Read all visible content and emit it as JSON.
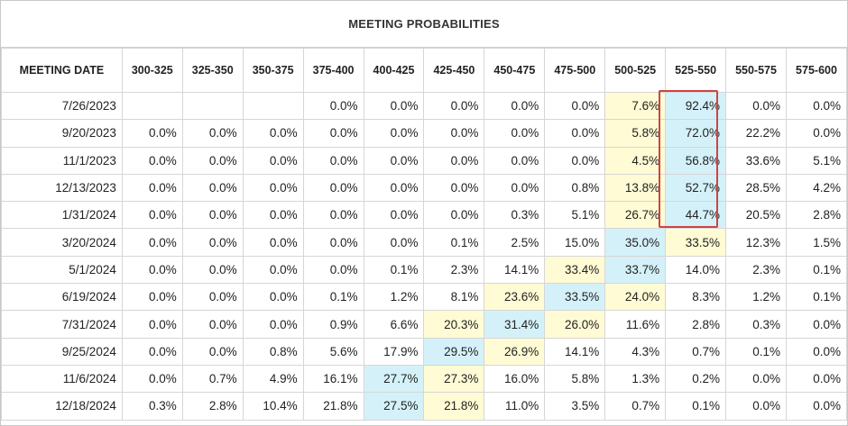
{
  "chart_data": {
    "type": "table",
    "title": "MEETING PROBABILITIES",
    "columns": [
      "MEETING DATE",
      "300-325",
      "325-350",
      "350-375",
      "375-400",
      "400-425",
      "425-450",
      "450-475",
      "475-500",
      "500-525",
      "525-550",
      "550-575",
      "575-600"
    ],
    "rows": [
      {
        "date": "7/26/2023",
        "values": [
          "",
          "",
          "",
          "0.0%",
          "0.0%",
          "0.0%",
          "0.0%",
          "0.0%",
          "7.6%",
          "92.4%",
          "0.0%",
          "0.0%"
        ]
      },
      {
        "date": "9/20/2023",
        "values": [
          "0.0%",
          "0.0%",
          "0.0%",
          "0.0%",
          "0.0%",
          "0.0%",
          "0.0%",
          "0.0%",
          "5.8%",
          "72.0%",
          "22.2%",
          "0.0%"
        ]
      },
      {
        "date": "11/1/2023",
        "values": [
          "0.0%",
          "0.0%",
          "0.0%",
          "0.0%",
          "0.0%",
          "0.0%",
          "0.0%",
          "0.0%",
          "4.5%",
          "56.8%",
          "33.6%",
          "5.1%"
        ]
      },
      {
        "date": "12/13/2023",
        "values": [
          "0.0%",
          "0.0%",
          "0.0%",
          "0.0%",
          "0.0%",
          "0.0%",
          "0.0%",
          "0.8%",
          "13.8%",
          "52.7%",
          "28.5%",
          "4.2%"
        ]
      },
      {
        "date": "1/31/2024",
        "values": [
          "0.0%",
          "0.0%",
          "0.0%",
          "0.0%",
          "0.0%",
          "0.0%",
          "0.3%",
          "5.1%",
          "26.7%",
          "44.7%",
          "20.5%",
          "2.8%"
        ]
      },
      {
        "date": "3/20/2024",
        "values": [
          "0.0%",
          "0.0%",
          "0.0%",
          "0.0%",
          "0.0%",
          "0.1%",
          "2.5%",
          "15.0%",
          "35.0%",
          "33.5%",
          "12.3%",
          "1.5%"
        ]
      },
      {
        "date": "5/1/2024",
        "values": [
          "0.0%",
          "0.0%",
          "0.0%",
          "0.0%",
          "0.1%",
          "2.3%",
          "14.1%",
          "33.4%",
          "33.7%",
          "14.0%",
          "2.3%",
          "0.1%"
        ]
      },
      {
        "date": "6/19/2024",
        "values": [
          "0.0%",
          "0.0%",
          "0.0%",
          "0.1%",
          "1.2%",
          "8.1%",
          "23.6%",
          "33.5%",
          "24.0%",
          "8.3%",
          "1.2%",
          "0.1%"
        ]
      },
      {
        "date": "7/31/2024",
        "values": [
          "0.0%",
          "0.0%",
          "0.0%",
          "0.9%",
          "6.6%",
          "20.3%",
          "31.4%",
          "26.0%",
          "11.6%",
          "2.8%",
          "0.3%",
          "0.0%"
        ]
      },
      {
        "date": "9/25/2024",
        "values": [
          "0.0%",
          "0.0%",
          "0.8%",
          "5.6%",
          "17.9%",
          "29.5%",
          "26.9%",
          "14.1%",
          "4.3%",
          "0.7%",
          "0.1%",
          "0.0%"
        ]
      },
      {
        "date": "11/6/2024",
        "values": [
          "0.0%",
          "0.7%",
          "4.9%",
          "16.1%",
          "27.7%",
          "27.3%",
          "16.0%",
          "5.8%",
          "1.3%",
          "0.2%",
          "0.0%",
          "0.0%"
        ]
      },
      {
        "date": "12/18/2024",
        "values": [
          "0.3%",
          "2.8%",
          "10.4%",
          "21.8%",
          "27.5%",
          "21.8%",
          "11.0%",
          "3.5%",
          "0.7%",
          "0.1%",
          "0.0%",
          "0.0%"
        ]
      }
    ],
    "highlights": [
      {
        "row": 0,
        "col": 8,
        "color": "yellow"
      },
      {
        "row": 0,
        "col": 9,
        "color": "blue"
      },
      {
        "row": 1,
        "col": 8,
        "color": "yellow"
      },
      {
        "row": 1,
        "col": 9,
        "color": "blue"
      },
      {
        "row": 2,
        "col": 8,
        "color": "yellow"
      },
      {
        "row": 2,
        "col": 9,
        "color": "blue"
      },
      {
        "row": 3,
        "col": 8,
        "color": "yellow"
      },
      {
        "row": 3,
        "col": 9,
        "color": "blue"
      },
      {
        "row": 4,
        "col": 8,
        "color": "yellow"
      },
      {
        "row": 4,
        "col": 9,
        "color": "blue"
      },
      {
        "row": 5,
        "col": 8,
        "color": "blue"
      },
      {
        "row": 5,
        "col": 9,
        "color": "yellow"
      },
      {
        "row": 6,
        "col": 7,
        "color": "yellow"
      },
      {
        "row": 6,
        "col": 8,
        "color": "blue"
      },
      {
        "row": 7,
        "col": 6,
        "color": "yellow"
      },
      {
        "row": 7,
        "col": 7,
        "color": "blue"
      },
      {
        "row": 7,
        "col": 8,
        "color": "yellow"
      },
      {
        "row": 8,
        "col": 5,
        "color": "yellow"
      },
      {
        "row": 8,
        "col": 6,
        "color": "blue"
      },
      {
        "row": 8,
        "col": 7,
        "color": "yellow"
      },
      {
        "row": 9,
        "col": 5,
        "color": "blue"
      },
      {
        "row": 9,
        "col": 6,
        "color": "yellow"
      },
      {
        "row": 10,
        "col": 4,
        "color": "blue"
      },
      {
        "row": 10,
        "col": 5,
        "color": "yellow"
      },
      {
        "row": 11,
        "col": 4,
        "color": "blue"
      },
      {
        "row": 11,
        "col": 5,
        "color": "yellow"
      }
    ],
    "annotation": {
      "type": "outline-box",
      "column": "525-550",
      "rows": [
        0,
        4
      ],
      "color": "#cc4444"
    },
    "colors": {
      "yellow": "#fffbd4",
      "blue": "#d4f1f9"
    }
  }
}
